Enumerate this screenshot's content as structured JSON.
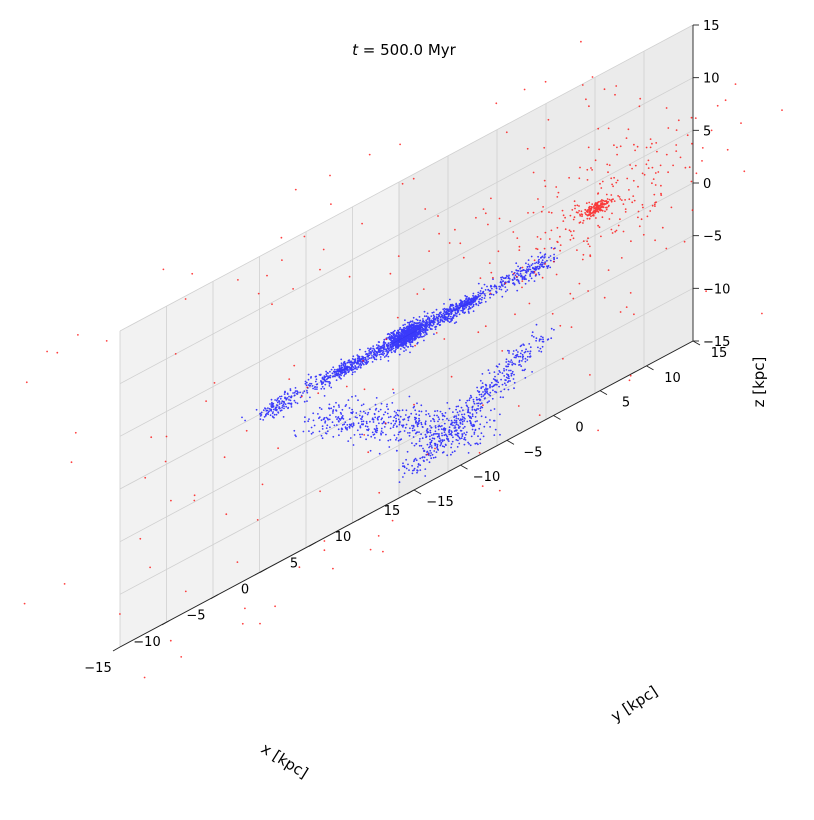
{
  "chart_data": {
    "type": "scatter",
    "projection": "3d",
    "title_var": "t",
    "title_rest": " = 500.0 Myr",
    "xlabel": "x [kpc]",
    "ylabel": "y [kpc]",
    "zlabel": "z [kpc]",
    "xlim": [
      -15,
      15
    ],
    "ylim": [
      -15,
      15
    ],
    "zlim": [
      -15,
      15
    ],
    "xticks": [
      -15,
      -10,
      -5,
      0,
      5,
      10,
      15
    ],
    "yticks": [
      -15,
      -10,
      -5,
      0,
      5,
      10,
      15
    ],
    "zticks": [
      -15,
      -10,
      -5,
      0,
      5,
      10,
      15
    ],
    "grid": true,
    "series": [
      {
        "color": "#0000ff",
        "marker_size": 1,
        "components": [
          {
            "shape": "core",
            "center": [
              0,
              0,
              0
            ],
            "count": 700,
            "sigma": [
              0.7,
              0.7,
              0.5
            ]
          },
          {
            "shape": "ring",
            "center": [
              0,
              0,
              0
            ],
            "radius": 5,
            "count": 700,
            "scatter": 0.8
          },
          {
            "shape": "ring",
            "center": [
              0,
              0,
              0
            ],
            "radius": 10,
            "count": 700,
            "scatter": 1.2
          },
          {
            "shape": "tidal_tail",
            "from": [
              -13,
              4,
              -3
            ],
            "to": [
              -3,
              11,
              -13
            ],
            "count": 500,
            "scatter": 1.0
          },
          {
            "shape": "tidal_tail",
            "from": [
              1,
              13,
              -7
            ],
            "to": [
              13,
              -13,
              -13
            ],
            "count": 400,
            "scatter": 1.0
          }
        ]
      },
      {
        "color": "#ff0000",
        "marker_size": 1,
        "components": [
          {
            "shape": "core",
            "center": [
              10,
              10,
              2.5
            ],
            "count": 160,
            "sigma": [
              0.6,
              0.6,
              0.3
            ]
          },
          {
            "shape": "halo",
            "center": [
              10,
              10,
              2.5
            ],
            "count": 220,
            "sigma": [
              4,
              4,
              3
            ]
          },
          {
            "shape": "field",
            "count": 170
          }
        ]
      }
    ]
  }
}
